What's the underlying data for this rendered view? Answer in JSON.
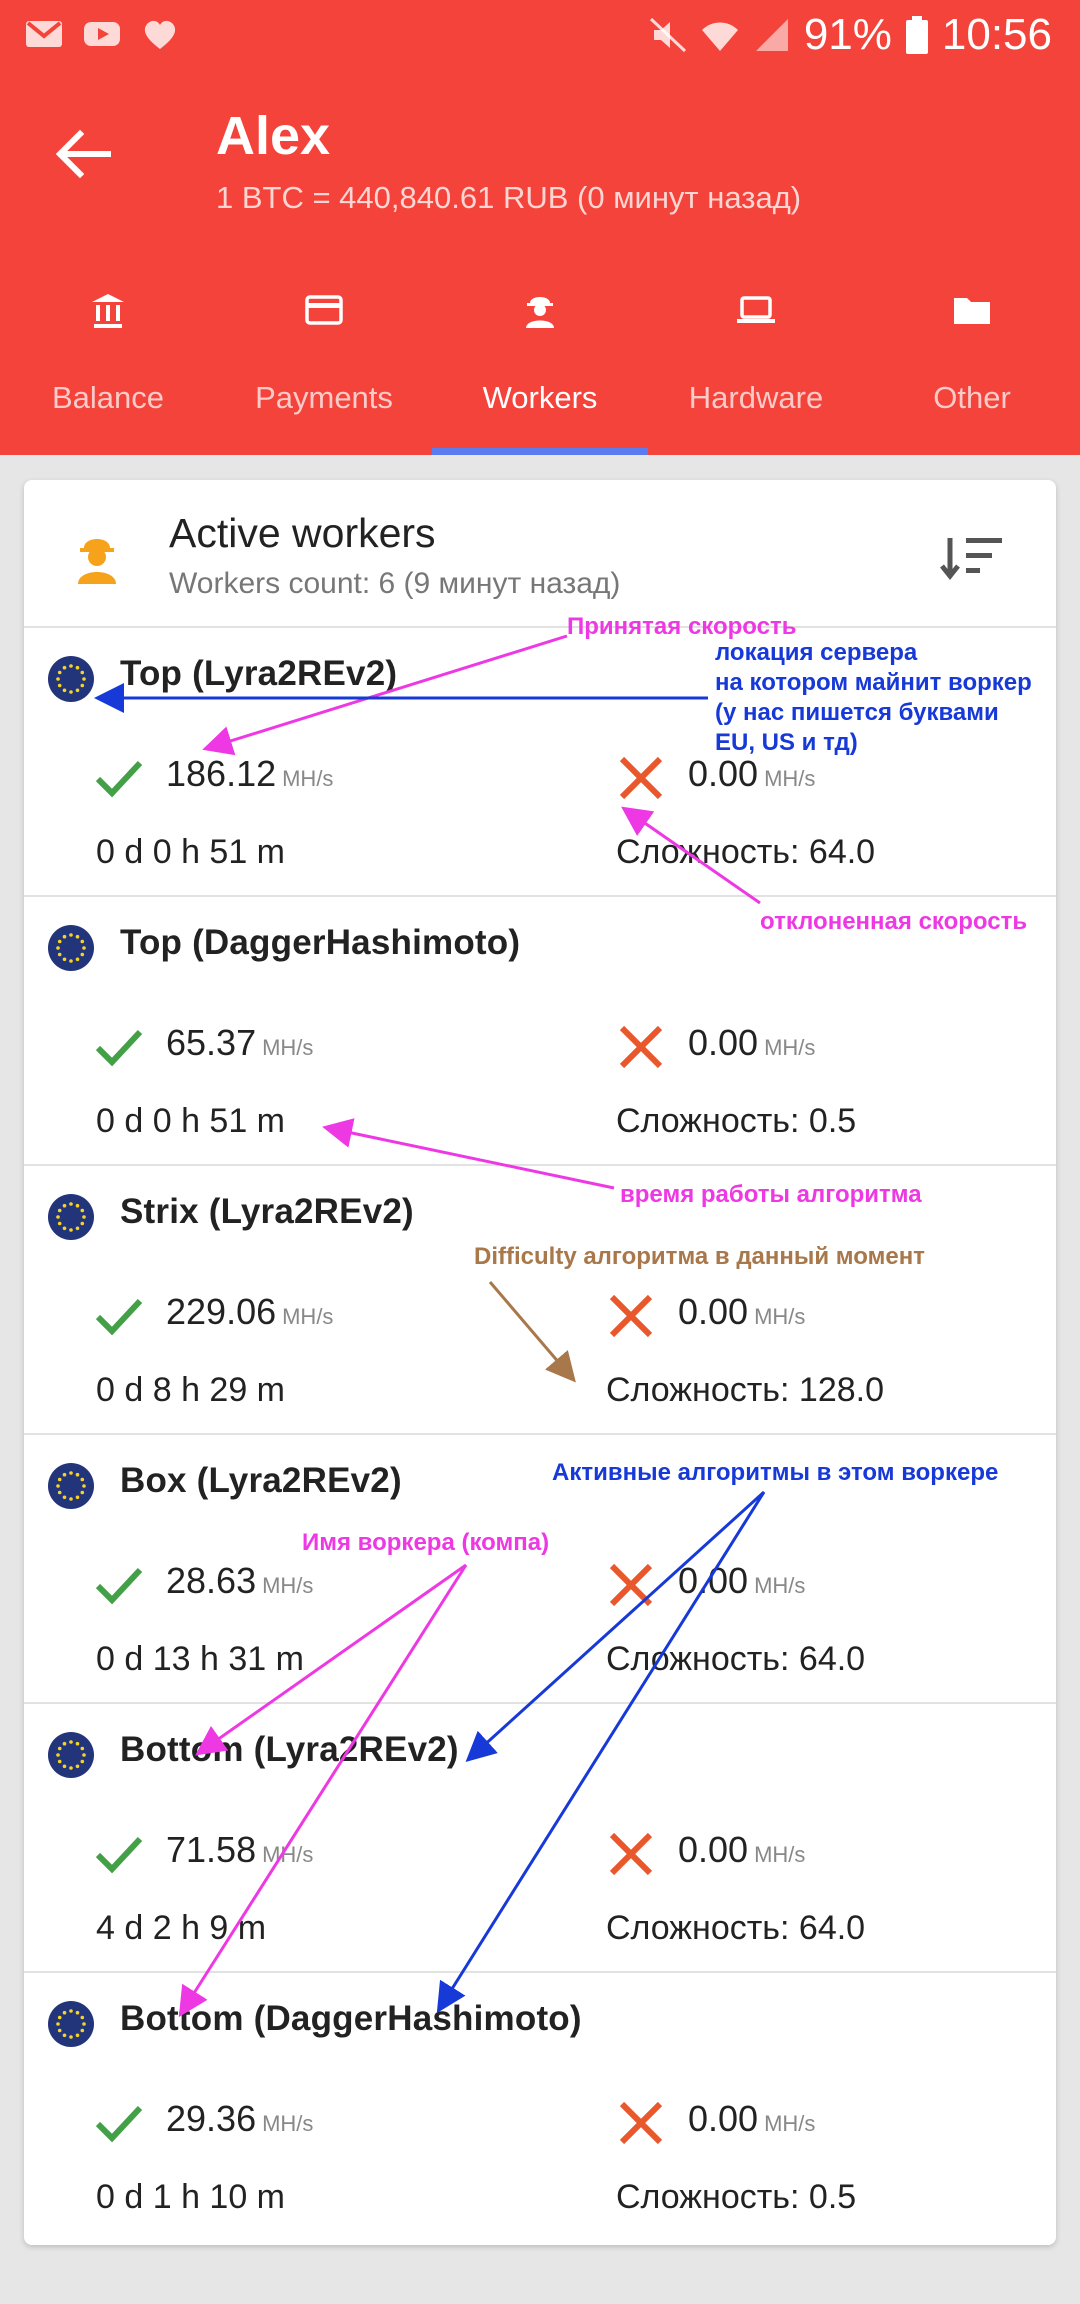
{
  "status_bar": {
    "battery": "91%",
    "time": "10:56"
  },
  "header": {
    "title": "Alex",
    "subtitle": "1 BTC = 440,840.61 RUB (0 минут назад)"
  },
  "tabs": [
    {
      "label": "Balance",
      "icon": "bank-icon"
    },
    {
      "label": "Payments",
      "icon": "card-icon"
    },
    {
      "label": "Workers",
      "icon": "worker-icon",
      "active": true
    },
    {
      "label": "Hardware",
      "icon": "laptop-icon"
    },
    {
      "label": "Other",
      "icon": "folder-icon"
    }
  ],
  "card": {
    "title": "Active workers",
    "subtitle": "Workers count: 6 (9 минут назад)"
  },
  "units": {
    "speed": "MH/s"
  },
  "workers": [
    {
      "name": "Top (Lyra2REv2)",
      "accepted": "186.12",
      "rejected": "0.00",
      "uptime": "0 d 0 h 51 m",
      "difficulty": "Сложность: 64.0"
    },
    {
      "name": "Top (DaggerHashimoto)",
      "accepted": "65.37",
      "rejected": "0.00",
      "uptime": "0 d 0 h 51 m",
      "difficulty": "Сложность: 0.5"
    },
    {
      "name": "Strix (Lyra2REv2)",
      "accepted": "229.06",
      "rejected": "0.00",
      "uptime": "0 d 8 h 29 m",
      "difficulty": "Сложность: 128.0"
    },
    {
      "name": "Box (Lyra2REv2)",
      "accepted": "28.63",
      "rejected": "0.00",
      "uptime": "0 d 13 h 31 m",
      "difficulty": "Сложность: 64.0"
    },
    {
      "name": "Bottom (Lyra2REv2)",
      "accepted": "71.58",
      "rejected": "0.00",
      "uptime": "4 d 2 h 9 m",
      "difficulty": "Сложность: 64.0"
    },
    {
      "name": "Bottom (DaggerHashimoto)",
      "accepted": "29.36",
      "rejected": "0.00",
      "uptime": "0 d 1 h 10 m",
      "difficulty": "Сложность: 0.5"
    }
  ],
  "annotations": {
    "accepted_speed": "Принятая скорость",
    "server_location_1": "локация сервера",
    "server_location_2": "на котором майнит воркер",
    "server_location_3": "(у нас пишется буквами",
    "server_location_4": "EU, US и тд)",
    "rejected_speed": "отклоненная скорость",
    "uptime": "время работы алгоритма",
    "difficulty": "Difficulty алгоритма в данный момент",
    "active_algos": "Активные алгоритмы в этом воркере",
    "worker_name": "Имя воркера (компа)"
  },
  "colors": {
    "header": "#f4433a",
    "accept": "#43a047",
    "reject": "#e8582c",
    "annotation_pink": "#ee38e4",
    "annotation_blue": "#1639d8",
    "annotation_brown": "#a8774a"
  }
}
